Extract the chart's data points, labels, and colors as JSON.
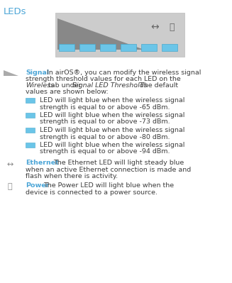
{
  "title": "LEDs",
  "title_color": "#4da6d7",
  "bg_color": "#ffffff",
  "device_bg": "#cccccc",
  "led_color": "#6bc5e8",
  "led_border": "#4aa8cc",
  "signal_label": "Signal",
  "signal_color": "#4da6d7",
  "bullet_texts": [
    [
      "-65 dBm",
      "LED will light blue when the wireless signal",
      "strength is equal to or above -65 dBm."
    ],
    [
      "-73 dBm",
      "LED will light blue when the wireless signal",
      "strength is equal to or above -73 dBm."
    ],
    [
      "-80 dBm",
      "LED will light blue when the wireless signal",
      "strength is equal to or above -80 dBm."
    ],
    [
      "-94 dBm",
      "LED will light blue when the wireless signal",
      "strength is equal to or above -94 dBm."
    ]
  ],
  "ethernet_label": "Ethernet",
  "ethernet_color": "#4da6d7",
  "power_label": "Power",
  "power_color": "#4da6d7",
  "text_color": "#3d3d3d",
  "font_size": 6.8,
  "title_font_size": 9.5
}
